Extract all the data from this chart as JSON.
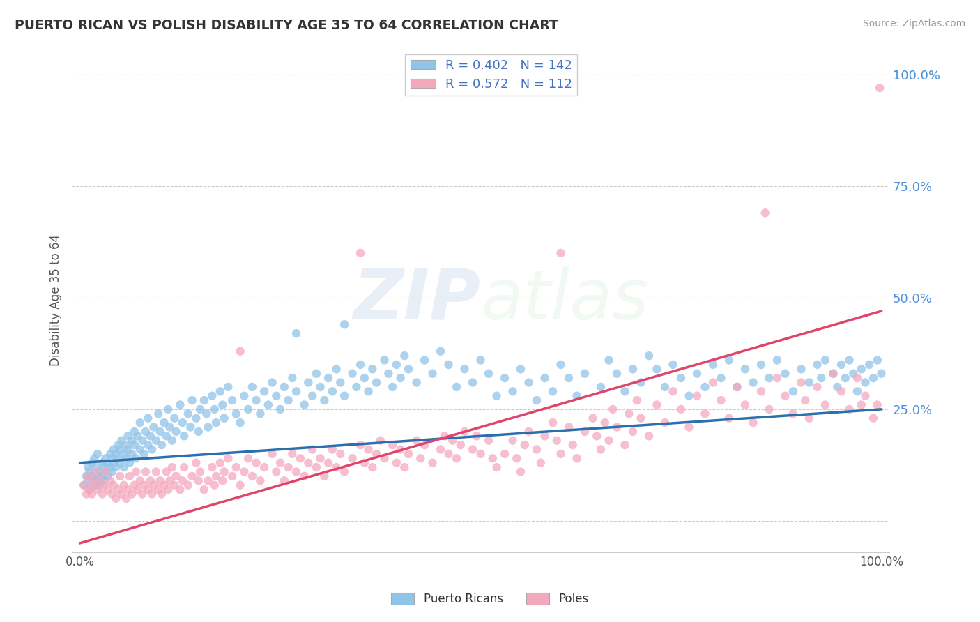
{
  "title": "PUERTO RICAN VS POLISH DISABILITY AGE 35 TO 64 CORRELATION CHART",
  "source": "Source: ZipAtlas.com",
  "ylabel": "Disability Age 35 to 64",
  "xlim": [
    -0.01,
    1.01
  ],
  "ylim": [
    -0.07,
    1.06
  ],
  "yticks": [
    0.0,
    0.25,
    0.5,
    0.75,
    1.0
  ],
  "ytick_labels": [
    "",
    "25.0%",
    "50.0%",
    "75.0%",
    "100.0%"
  ],
  "blue_color": "#90c4e8",
  "pink_color": "#f4a8be",
  "blue_line_color": "#2c6fad",
  "pink_line_color": "#e0446a",
  "watermark_zip": "ZIP",
  "watermark_atlas": "atlas",
  "blue_R": 0.402,
  "blue_N": 142,
  "pink_R": 0.572,
  "pink_N": 112,
  "blue_slope": 0.12,
  "blue_intercept": 0.13,
  "pink_slope": 0.52,
  "pink_intercept": -0.05,
  "legend_text_color": "#4472c4",
  "blue_scatter": [
    [
      0.005,
      0.08
    ],
    [
      0.008,
      0.1
    ],
    [
      0.01,
      0.09
    ],
    [
      0.01,
      0.12
    ],
    [
      0.012,
      0.07
    ],
    [
      0.012,
      0.11
    ],
    [
      0.015,
      0.1
    ],
    [
      0.015,
      0.13
    ],
    [
      0.018,
      0.08
    ],
    [
      0.018,
      0.14
    ],
    [
      0.02,
      0.09
    ],
    [
      0.02,
      0.12
    ],
    [
      0.022,
      0.1
    ],
    [
      0.022,
      0.15
    ],
    [
      0.025,
      0.11
    ],
    [
      0.025,
      0.08
    ],
    [
      0.028,
      0.13
    ],
    [
      0.028,
      0.1
    ],
    [
      0.03,
      0.12
    ],
    [
      0.03,
      0.09
    ],
    [
      0.032,
      0.14
    ],
    [
      0.032,
      0.11
    ],
    [
      0.035,
      0.13
    ],
    [
      0.035,
      0.1
    ],
    [
      0.038,
      0.15
    ],
    [
      0.038,
      0.12
    ],
    [
      0.04,
      0.14
    ],
    [
      0.04,
      0.11
    ],
    [
      0.042,
      0.16
    ],
    [
      0.042,
      0.13
    ],
    [
      0.045,
      0.15
    ],
    [
      0.045,
      0.12
    ],
    [
      0.048,
      0.17
    ],
    [
      0.048,
      0.14
    ],
    [
      0.05,
      0.16
    ],
    [
      0.05,
      0.13
    ],
    [
      0.052,
      0.18
    ],
    [
      0.055,
      0.15
    ],
    [
      0.055,
      0.12
    ],
    [
      0.058,
      0.17
    ],
    [
      0.058,
      0.14
    ],
    [
      0.06,
      0.19
    ],
    [
      0.06,
      0.16
    ],
    [
      0.062,
      0.13
    ],
    [
      0.065,
      0.18
    ],
    [
      0.065,
      0.15
    ],
    [
      0.068,
      0.2
    ],
    [
      0.068,
      0.17
    ],
    [
      0.07,
      0.14
    ],
    [
      0.072,
      0.19
    ],
    [
      0.075,
      0.16
    ],
    [
      0.075,
      0.22
    ],
    [
      0.078,
      0.18
    ],
    [
      0.08,
      0.15
    ],
    [
      0.082,
      0.2
    ],
    [
      0.085,
      0.17
    ],
    [
      0.085,
      0.23
    ],
    [
      0.088,
      0.19
    ],
    [
      0.09,
      0.16
    ],
    [
      0.092,
      0.21
    ],
    [
      0.095,
      0.18
    ],
    [
      0.098,
      0.24
    ],
    [
      0.1,
      0.2
    ],
    [
      0.102,
      0.17
    ],
    [
      0.105,
      0.22
    ],
    [
      0.108,
      0.19
    ],
    [
      0.11,
      0.25
    ],
    [
      0.112,
      0.21
    ],
    [
      0.115,
      0.18
    ],
    [
      0.118,
      0.23
    ],
    [
      0.12,
      0.2
    ],
    [
      0.125,
      0.26
    ],
    [
      0.128,
      0.22
    ],
    [
      0.13,
      0.19
    ],
    [
      0.135,
      0.24
    ],
    [
      0.138,
      0.21
    ],
    [
      0.14,
      0.27
    ],
    [
      0.145,
      0.23
    ],
    [
      0.148,
      0.2
    ],
    [
      0.15,
      0.25
    ],
    [
      0.155,
      0.27
    ],
    [
      0.158,
      0.24
    ],
    [
      0.16,
      0.21
    ],
    [
      0.165,
      0.28
    ],
    [
      0.168,
      0.25
    ],
    [
      0.17,
      0.22
    ],
    [
      0.175,
      0.29
    ],
    [
      0.178,
      0.26
    ],
    [
      0.18,
      0.23
    ],
    [
      0.185,
      0.3
    ],
    [
      0.19,
      0.27
    ],
    [
      0.195,
      0.24
    ],
    [
      0.2,
      0.22
    ],
    [
      0.205,
      0.28
    ],
    [
      0.21,
      0.25
    ],
    [
      0.215,
      0.3
    ],
    [
      0.22,
      0.27
    ],
    [
      0.225,
      0.24
    ],
    [
      0.23,
      0.29
    ],
    [
      0.235,
      0.26
    ],
    [
      0.24,
      0.31
    ],
    [
      0.245,
      0.28
    ],
    [
      0.25,
      0.25
    ],
    [
      0.255,
      0.3
    ],
    [
      0.26,
      0.27
    ],
    [
      0.265,
      0.32
    ],
    [
      0.27,
      0.29
    ],
    [
      0.28,
      0.26
    ],
    [
      0.285,
      0.31
    ],
    [
      0.29,
      0.28
    ],
    [
      0.295,
      0.33
    ],
    [
      0.3,
      0.3
    ],
    [
      0.305,
      0.27
    ],
    [
      0.31,
      0.32
    ],
    [
      0.315,
      0.29
    ],
    [
      0.32,
      0.34
    ],
    [
      0.325,
      0.31
    ],
    [
      0.33,
      0.28
    ],
    [
      0.34,
      0.33
    ],
    [
      0.345,
      0.3
    ],
    [
      0.35,
      0.35
    ],
    [
      0.355,
      0.32
    ],
    [
      0.36,
      0.29
    ],
    [
      0.365,
      0.34
    ],
    [
      0.37,
      0.31
    ],
    [
      0.38,
      0.36
    ],
    [
      0.385,
      0.33
    ],
    [
      0.39,
      0.3
    ],
    [
      0.395,
      0.35
    ],
    [
      0.4,
      0.32
    ],
    [
      0.405,
      0.37
    ],
    [
      0.41,
      0.34
    ],
    [
      0.42,
      0.31
    ],
    [
      0.43,
      0.36
    ],
    [
      0.44,
      0.33
    ],
    [
      0.45,
      0.38
    ],
    [
      0.46,
      0.35
    ],
    [
      0.47,
      0.3
    ],
    [
      0.48,
      0.34
    ],
    [
      0.49,
      0.31
    ],
    [
      0.5,
      0.36
    ],
    [
      0.51,
      0.33
    ],
    [
      0.52,
      0.28
    ],
    [
      0.53,
      0.32
    ],
    [
      0.54,
      0.29
    ],
    [
      0.55,
      0.34
    ],
    [
      0.56,
      0.31
    ],
    [
      0.57,
      0.27
    ],
    [
      0.58,
      0.32
    ],
    [
      0.59,
      0.29
    ],
    [
      0.6,
      0.35
    ],
    [
      0.61,
      0.32
    ],
    [
      0.62,
      0.28
    ],
    [
      0.63,
      0.33
    ],
    [
      0.65,
      0.3
    ],
    [
      0.66,
      0.36
    ],
    [
      0.67,
      0.33
    ],
    [
      0.68,
      0.29
    ],
    [
      0.69,
      0.34
    ],
    [
      0.7,
      0.31
    ],
    [
      0.71,
      0.37
    ],
    [
      0.72,
      0.34
    ],
    [
      0.73,
      0.3
    ],
    [
      0.74,
      0.35
    ],
    [
      0.75,
      0.32
    ],
    [
      0.76,
      0.28
    ],
    [
      0.77,
      0.33
    ],
    [
      0.78,
      0.3
    ],
    [
      0.79,
      0.35
    ],
    [
      0.8,
      0.32
    ],
    [
      0.81,
      0.36
    ],
    [
      0.82,
      0.3
    ],
    [
      0.83,
      0.34
    ],
    [
      0.84,
      0.31
    ],
    [
      0.85,
      0.35
    ],
    [
      0.86,
      0.32
    ],
    [
      0.87,
      0.36
    ],
    [
      0.88,
      0.33
    ],
    [
      0.89,
      0.29
    ],
    [
      0.9,
      0.34
    ],
    [
      0.91,
      0.31
    ],
    [
      0.92,
      0.35
    ],
    [
      0.925,
      0.32
    ],
    [
      0.93,
      0.36
    ],
    [
      0.94,
      0.33
    ],
    [
      0.945,
      0.3
    ],
    [
      0.95,
      0.35
    ],
    [
      0.955,
      0.32
    ],
    [
      0.96,
      0.36
    ],
    [
      0.965,
      0.33
    ],
    [
      0.97,
      0.29
    ],
    [
      0.975,
      0.34
    ],
    [
      0.98,
      0.31
    ],
    [
      0.985,
      0.35
    ],
    [
      0.99,
      0.32
    ],
    [
      0.995,
      0.36
    ],
    [
      1.0,
      0.33
    ],
    [
      0.27,
      0.42
    ],
    [
      0.33,
      0.44
    ]
  ],
  "pink_scatter": [
    [
      0.005,
      0.08
    ],
    [
      0.008,
      0.06
    ],
    [
      0.01,
      0.1
    ],
    [
      0.012,
      0.07
    ],
    [
      0.015,
      0.09
    ],
    [
      0.015,
      0.06
    ],
    [
      0.018,
      0.08
    ],
    [
      0.02,
      0.11
    ],
    [
      0.022,
      0.07
    ],
    [
      0.025,
      0.09
    ],
    [
      0.028,
      0.06
    ],
    [
      0.03,
      0.08
    ],
    [
      0.032,
      0.11
    ],
    [
      0.035,
      0.07
    ],
    [
      0.038,
      0.09
    ],
    [
      0.04,
      0.06
    ],
    [
      0.042,
      0.08
    ],
    [
      0.045,
      0.05
    ],
    [
      0.048,
      0.07
    ],
    [
      0.05,
      0.1
    ],
    [
      0.052,
      0.06
    ],
    [
      0.055,
      0.08
    ],
    [
      0.058,
      0.05
    ],
    [
      0.06,
      0.07
    ],
    [
      0.062,
      0.1
    ],
    [
      0.065,
      0.06
    ],
    [
      0.068,
      0.08
    ],
    [
      0.07,
      0.11
    ],
    [
      0.072,
      0.07
    ],
    [
      0.075,
      0.09
    ],
    [
      0.078,
      0.06
    ],
    [
      0.08,
      0.08
    ],
    [
      0.082,
      0.11
    ],
    [
      0.085,
      0.07
    ],
    [
      0.088,
      0.09
    ],
    [
      0.09,
      0.06
    ],
    [
      0.092,
      0.08
    ],
    [
      0.095,
      0.11
    ],
    [
      0.098,
      0.07
    ],
    [
      0.1,
      0.09
    ],
    [
      0.102,
      0.06
    ],
    [
      0.105,
      0.08
    ],
    [
      0.108,
      0.11
    ],
    [
      0.11,
      0.07
    ],
    [
      0.112,
      0.09
    ],
    [
      0.115,
      0.12
    ],
    [
      0.118,
      0.08
    ],
    [
      0.12,
      0.1
    ],
    [
      0.125,
      0.07
    ],
    [
      0.128,
      0.09
    ],
    [
      0.13,
      0.12
    ],
    [
      0.135,
      0.08
    ],
    [
      0.14,
      0.1
    ],
    [
      0.145,
      0.13
    ],
    [
      0.148,
      0.09
    ],
    [
      0.15,
      0.11
    ],
    [
      0.155,
      0.07
    ],
    [
      0.16,
      0.09
    ],
    [
      0.165,
      0.12
    ],
    [
      0.168,
      0.08
    ],
    [
      0.17,
      0.1
    ],
    [
      0.175,
      0.13
    ],
    [
      0.178,
      0.09
    ],
    [
      0.18,
      0.11
    ],
    [
      0.185,
      0.14
    ],
    [
      0.19,
      0.1
    ],
    [
      0.195,
      0.12
    ],
    [
      0.2,
      0.08
    ],
    [
      0.205,
      0.11
    ],
    [
      0.21,
      0.14
    ],
    [
      0.215,
      0.1
    ],
    [
      0.22,
      0.13
    ],
    [
      0.225,
      0.09
    ],
    [
      0.23,
      0.12
    ],
    [
      0.24,
      0.15
    ],
    [
      0.245,
      0.11
    ],
    [
      0.25,
      0.13
    ],
    [
      0.255,
      0.09
    ],
    [
      0.26,
      0.12
    ],
    [
      0.265,
      0.15
    ],
    [
      0.27,
      0.11
    ],
    [
      0.275,
      0.14
    ],
    [
      0.28,
      0.1
    ],
    [
      0.285,
      0.13
    ],
    [
      0.29,
      0.16
    ],
    [
      0.295,
      0.12
    ],
    [
      0.3,
      0.14
    ],
    [
      0.305,
      0.1
    ],
    [
      0.31,
      0.13
    ],
    [
      0.315,
      0.16
    ],
    [
      0.32,
      0.12
    ],
    [
      0.325,
      0.15
    ],
    [
      0.33,
      0.11
    ],
    [
      0.34,
      0.14
    ],
    [
      0.35,
      0.17
    ],
    [
      0.355,
      0.13
    ],
    [
      0.36,
      0.16
    ],
    [
      0.365,
      0.12
    ],
    [
      0.37,
      0.15
    ],
    [
      0.375,
      0.18
    ],
    [
      0.38,
      0.14
    ],
    [
      0.39,
      0.17
    ],
    [
      0.395,
      0.13
    ],
    [
      0.4,
      0.16
    ],
    [
      0.405,
      0.12
    ],
    [
      0.41,
      0.15
    ],
    [
      0.42,
      0.18
    ],
    [
      0.425,
      0.14
    ],
    [
      0.43,
      0.17
    ],
    [
      0.44,
      0.13
    ],
    [
      0.45,
      0.16
    ],
    [
      0.455,
      0.19
    ],
    [
      0.46,
      0.15
    ],
    [
      0.465,
      0.18
    ],
    [
      0.47,
      0.14
    ],
    [
      0.475,
      0.17
    ],
    [
      0.48,
      0.2
    ],
    [
      0.49,
      0.16
    ],
    [
      0.495,
      0.19
    ],
    [
      0.5,
      0.15
    ],
    [
      0.51,
      0.18
    ],
    [
      0.515,
      0.14
    ],
    [
      0.52,
      0.12
    ],
    [
      0.53,
      0.15
    ],
    [
      0.54,
      0.18
    ],
    [
      0.545,
      0.14
    ],
    [
      0.55,
      0.11
    ],
    [
      0.555,
      0.17
    ],
    [
      0.56,
      0.2
    ],
    [
      0.57,
      0.16
    ],
    [
      0.575,
      0.13
    ],
    [
      0.58,
      0.19
    ],
    [
      0.59,
      0.22
    ],
    [
      0.595,
      0.18
    ],
    [
      0.6,
      0.15
    ],
    [
      0.61,
      0.21
    ],
    [
      0.615,
      0.17
    ],
    [
      0.62,
      0.14
    ],
    [
      0.63,
      0.2
    ],
    [
      0.64,
      0.23
    ],
    [
      0.645,
      0.19
    ],
    [
      0.65,
      0.16
    ],
    [
      0.655,
      0.22
    ],
    [
      0.66,
      0.18
    ],
    [
      0.665,
      0.25
    ],
    [
      0.67,
      0.21
    ],
    [
      0.68,
      0.17
    ],
    [
      0.685,
      0.24
    ],
    [
      0.69,
      0.2
    ],
    [
      0.695,
      0.27
    ],
    [
      0.7,
      0.23
    ],
    [
      0.71,
      0.19
    ],
    [
      0.72,
      0.26
    ],
    [
      0.73,
      0.22
    ],
    [
      0.74,
      0.29
    ],
    [
      0.75,
      0.25
    ],
    [
      0.76,
      0.21
    ],
    [
      0.77,
      0.28
    ],
    [
      0.78,
      0.24
    ],
    [
      0.79,
      0.31
    ],
    [
      0.8,
      0.27
    ],
    [
      0.81,
      0.23
    ],
    [
      0.82,
      0.3
    ],
    [
      0.83,
      0.26
    ],
    [
      0.84,
      0.22
    ],
    [
      0.85,
      0.29
    ],
    [
      0.855,
      0.69
    ],
    [
      0.86,
      0.25
    ],
    [
      0.87,
      0.32
    ],
    [
      0.88,
      0.28
    ],
    [
      0.89,
      0.24
    ],
    [
      0.9,
      0.31
    ],
    [
      0.905,
      0.27
    ],
    [
      0.91,
      0.23
    ],
    [
      0.92,
      0.3
    ],
    [
      0.93,
      0.26
    ],
    [
      0.94,
      0.33
    ],
    [
      0.95,
      0.29
    ],
    [
      0.96,
      0.25
    ],
    [
      0.97,
      0.32
    ],
    [
      0.975,
      0.26
    ],
    [
      0.98,
      0.28
    ],
    [
      0.99,
      0.23
    ],
    [
      0.995,
      0.26
    ],
    [
      0.998,
      0.97
    ],
    [
      0.2,
      0.38
    ],
    [
      0.35,
      0.6
    ],
    [
      0.6,
      0.6
    ]
  ]
}
